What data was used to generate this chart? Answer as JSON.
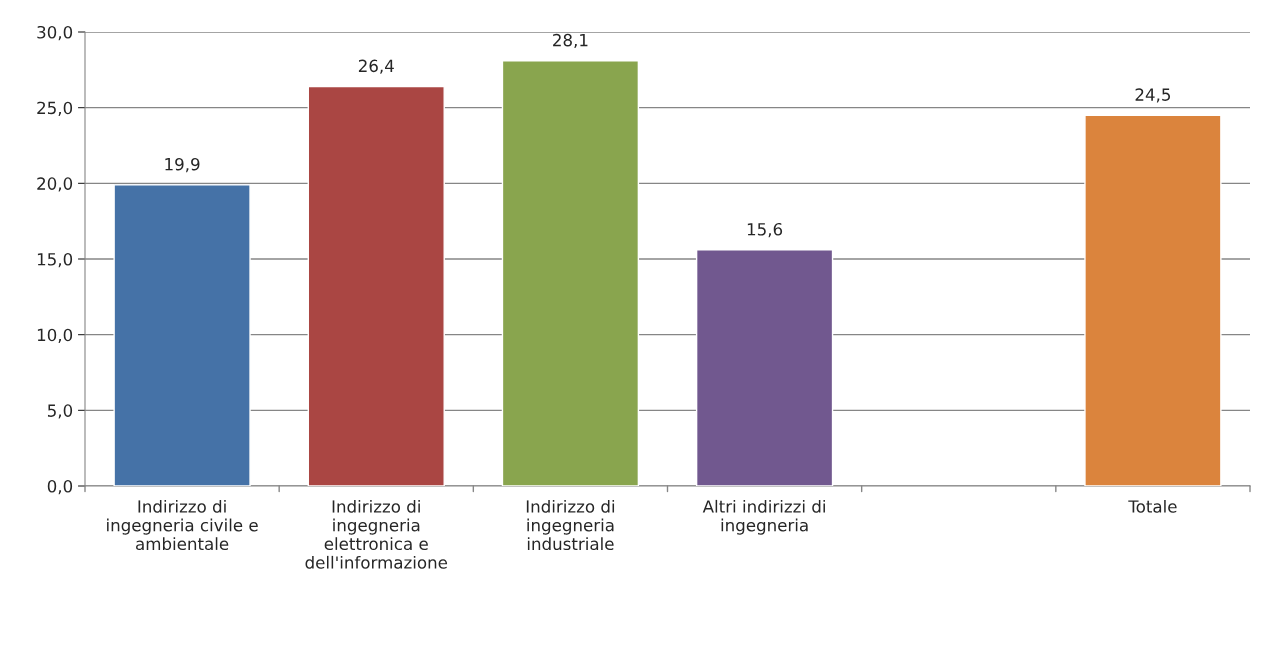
{
  "chart_data": {
    "type": "bar",
    "categories": [
      "Indirizzo di\ningegneria civile e\nambientale",
      "Indirizzo di\ningegneria\nelettronica e\ndell'informazione",
      "Indirizzo di\ningegneria\nindustriale",
      "Altri indirizzi di\ningegneria",
      null,
      "Totale"
    ],
    "values": [
      19.9,
      26.4,
      28.1,
      15.6,
      null,
      24.5
    ],
    "colors": [
      "#4572a7",
      "#aa4643",
      "#89a54e",
      "#71588f",
      null,
      "#db843d"
    ],
    "value_labels": [
      "19,9",
      "26,4",
      "28,1",
      "15,6",
      null,
      "24,5"
    ],
    "ylim": [
      0,
      30
    ],
    "yticks": [
      {
        "value": 0,
        "label": "0,0"
      },
      {
        "value": 5,
        "label": "5,0"
      },
      {
        "value": 10,
        "label": "10,0"
      },
      {
        "value": 15,
        "label": "15,0"
      },
      {
        "value": 20,
        "label": "20,0"
      },
      {
        "value": 25,
        "label": "25,0"
      },
      {
        "value": 30,
        "label": "30,0"
      }
    ],
    "grid": "y"
  }
}
